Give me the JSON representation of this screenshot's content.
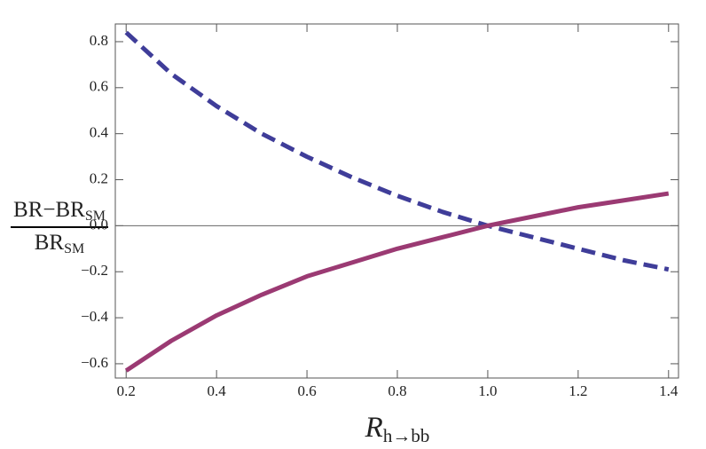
{
  "chart_data": {
    "type": "line",
    "ylabel_numerator": "BR−BR",
    "ylabel_numerator_sub": "SM",
    "ylabel_denominator": "BR",
    "ylabel_denominator_sub": "SM",
    "xlabel": "R",
    "xlabel_sub": "h→bb",
    "x": [
      0.2,
      0.3,
      0.4,
      0.5,
      0.6,
      0.7,
      0.8,
      0.9,
      1.0,
      1.1,
      1.2,
      1.3,
      1.4
    ],
    "series": [
      {
        "color": "#3f3d99",
        "dash": true,
        "values": [
          0.84,
          0.66,
          0.52,
          0.4,
          0.3,
          0.21,
          0.13,
          0.06,
          0,
          -0.05,
          -0.1,
          -0.15,
          -0.19
        ]
      },
      {
        "color": "#9b3a73",
        "dash": false,
        "values": [
          -0.63,
          -0.5,
          -0.39,
          -0.3,
          -0.22,
          -0.16,
          -0.1,
          -0.05,
          0,
          0.04,
          0.08,
          0.11,
          0.14
        ]
      }
    ],
    "xlim": [
      0.176,
      1.422
    ],
    "ylim": [
      -0.662,
      0.877
    ],
    "xticks": [
      0.2,
      0.4,
      0.6,
      0.8,
      {
        "value": 1.0,
        "label": "1.0"
      },
      1.2,
      1.4
    ],
    "yticks": [
      {
        "value": -0.6,
        "label": "−0.6"
      },
      {
        "value": -0.4,
        "label": "−0.4"
      },
      {
        "value": -0.2,
        "label": "−0.2"
      },
      {
        "value": 0,
        "label": "0.0"
      },
      0.2,
      0.4,
      0.6,
      0.8
    ],
    "zero_line": true
  }
}
